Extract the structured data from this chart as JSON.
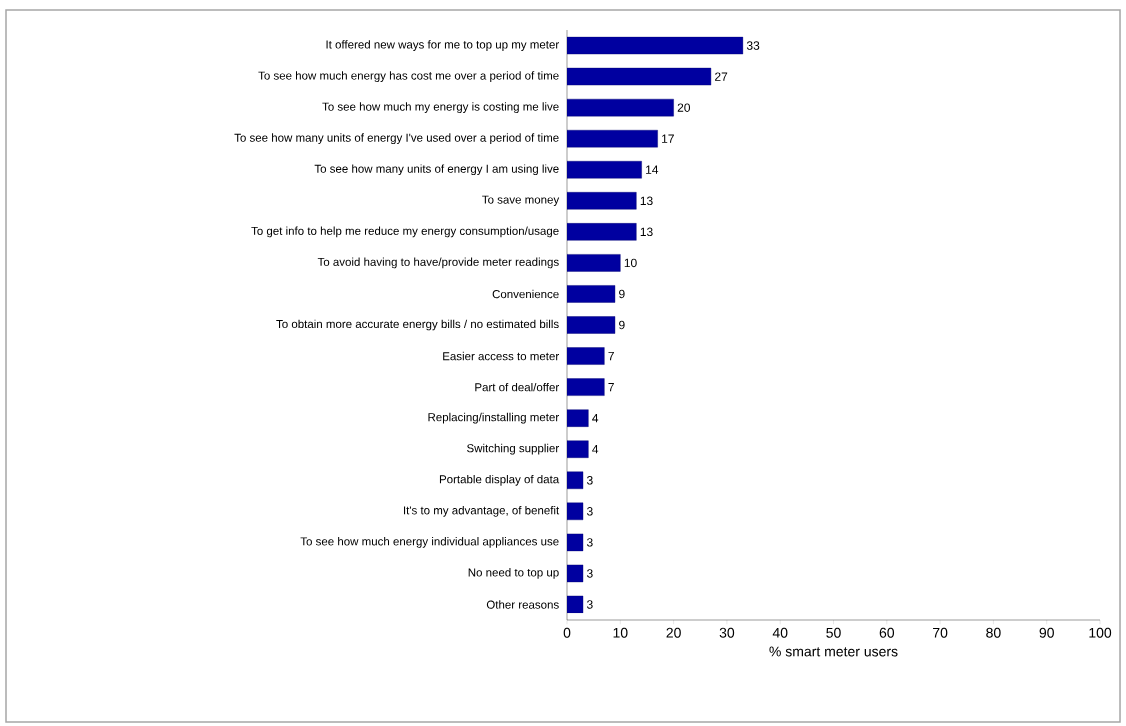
{
  "chart_data": {
    "type": "bar",
    "orientation": "horizontal",
    "xlabel": "% smart meter users",
    "categories": [
      "It offered new ways for me to top up my meter",
      "To see how much energy has cost me over a period of time",
      "To see how much my energy is costing me live",
      "To see how many units of energy I've used over a period of time",
      "To see how many units of energy I am using live",
      "To save money",
      "To get info to help me reduce my energy consumption/usage",
      "To avoid having to have/provide meter readings",
      "Convenience",
      "To obtain more accurate energy bills / no estimated bills",
      "Easier access to meter",
      "Part of deal/offer",
      "Replacing/installing meter",
      "Switching supplier",
      "Portable display of data",
      "It's to my advantage, of benefit",
      "To see how much energy individual appliances use",
      "No need to top up",
      "Other reasons"
    ],
    "values": [
      33,
      27,
      20,
      17,
      14,
      13,
      13,
      10,
      9,
      9,
      7,
      7,
      4,
      4,
      3,
      3,
      3,
      3,
      3
    ],
    "color": "#0000a0",
    "xlim": [
      0,
      100
    ],
    "xticks": [
      0,
      10,
      20,
      30,
      40,
      50,
      60,
      70,
      80,
      90,
      100
    ],
    "data_labels": true
  }
}
